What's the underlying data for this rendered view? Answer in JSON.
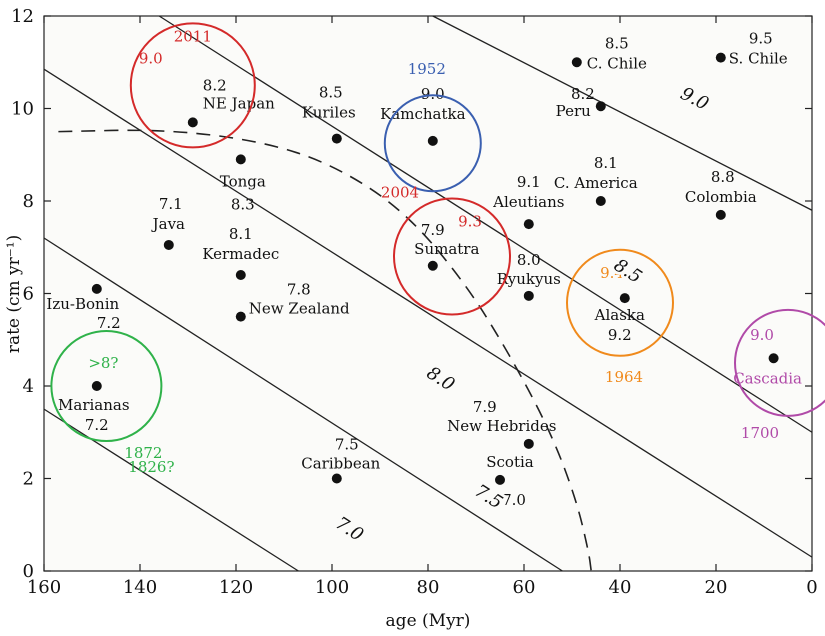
{
  "chart_data": {
    "type": "scatter",
    "xlabel": "age (Myr)",
    "ylabel": "rate (cm yr⁻¹)",
    "xlim": [
      160,
      0
    ],
    "ylim": [
      0,
      12
    ],
    "xticks": [
      160,
      140,
      120,
      100,
      80,
      60,
      40,
      20,
      0
    ],
    "yticks": [
      0,
      2,
      4,
      6,
      8,
      10,
      12
    ],
    "points": [
      {
        "name": "NE Japan",
        "mag": "8.2",
        "x": 129,
        "y": 9.7
      },
      {
        "name": "Tonga",
        "mag": "8.3",
        "x": 119,
        "y": 8.9
      },
      {
        "name": "Kuriles",
        "mag": "8.5",
        "x": 99,
        "y": 9.35
      },
      {
        "name": "Kamchatka",
        "mag": "9.0",
        "x": 79,
        "y": 9.3
      },
      {
        "name": "C. Chile",
        "mag": "8.5",
        "x": 49,
        "y": 11.0
      },
      {
        "name": "S. Chile",
        "mag": "9.5",
        "x": 19,
        "y": 11.1
      },
      {
        "name": "Peru",
        "mag": "8.2",
        "x": 44,
        "y": 10.05
      },
      {
        "name": "C. America",
        "mag": "8.1",
        "x": 44,
        "y": 8.0
      },
      {
        "name": "Colombia",
        "mag": "8.8",
        "x": 19,
        "y": 7.7
      },
      {
        "name": "Aleutians",
        "mag": "9.1",
        "x": 59,
        "y": 7.5
      },
      {
        "name": "Java",
        "mag": "7.1",
        "x": 134,
        "y": 7.05
      },
      {
        "name": "Kermadec",
        "mag": "8.1",
        "x": 119,
        "y": 6.4
      },
      {
        "name": "Sumatra",
        "mag": "7.9",
        "x": 79,
        "y": 6.6
      },
      {
        "name": "Ryukyus",
        "mag": "8.0",
        "x": 59,
        "y": 5.95
      },
      {
        "name": "Alaska",
        "mag": "9.2",
        "x": 39,
        "y": 5.9
      },
      {
        "name": "Izu-Bonin",
        "mag": "7.2",
        "x": 149,
        "y": 6.1
      },
      {
        "name": "New Zealand",
        "mag": "7.8",
        "x": 119,
        "y": 5.5
      },
      {
        "name": "Cascadia",
        "mag": "",
        "x": 8,
        "y": 4.6
      },
      {
        "name": "Marianas",
        "mag": "7.2",
        "x": 149,
        "y": 4.0
      },
      {
        "name": "New Hebrides",
        "mag": "7.9",
        "x": 59,
        "y": 2.75
      },
      {
        "name": "Caribbean",
        "mag": "7.5",
        "x": 99,
        "y": 2.0
      },
      {
        "name": "Scotia",
        "mag": "7.0",
        "x": 65,
        "y": 1.97
      }
    ],
    "contours": [
      {
        "label": "7.0",
        "from": [
          160,
          3.5
        ],
        "to": [
          107,
          0.0
        ]
      },
      {
        "label": "7.5",
        "from": [
          160,
          7.2
        ],
        "to": [
          52,
          0.0
        ]
      },
      {
        "label": "8.0",
        "from": [
          160,
          10.85
        ],
        "to": [
          0,
          0.3
        ]
      },
      {
        "label": "8.5",
        "from": [
          136,
          12.0
        ],
        "to": [
          0,
          3.0
        ]
      },
      {
        "label": "9.0",
        "from": [
          79,
          12.0
        ],
        "to": [
          0,
          7.8
        ]
      }
    ],
    "annotations": {
      "circles": [
        {
          "x": 129,
          "y": 10.5,
          "color": "#d42a2a",
          "year": "2011",
          "mag": "9.0"
        },
        {
          "x": 79,
          "y": 9.25,
          "color": "#3a5fb0",
          "year": "1952",
          "mag": ""
        },
        {
          "x": 75,
          "y": 6.8,
          "color": "#d42a2a",
          "year": "2004",
          "mag": "9.3"
        },
        {
          "x": 40,
          "y": 5.8,
          "color": "#f08a1c",
          "year": "1964",
          "mag": "9.4"
        },
        {
          "x": 5,
          "y": 4.5,
          "color": "#b04aa8",
          "year": "1700",
          "mag": "9.0"
        },
        {
          "x": 147,
          "y": 4.0,
          "color": "#2fb24a",
          "year": "1872",
          "mag": ">8?"
        }
      ],
      "extra_note": "1826?"
    }
  }
}
